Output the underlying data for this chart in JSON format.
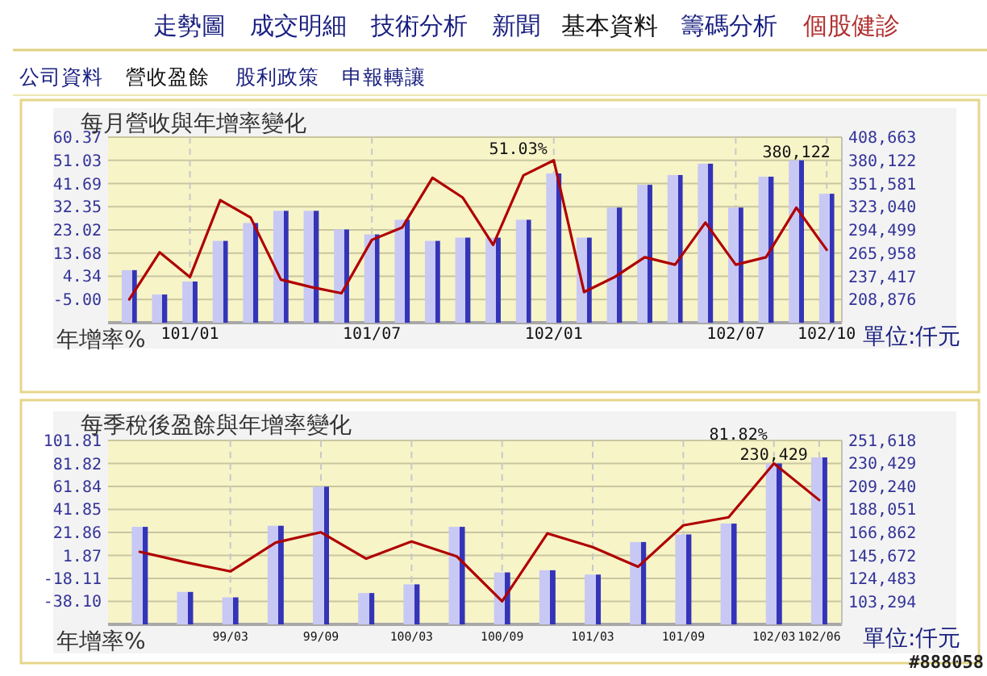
{
  "chart_data": [
    {
      "type": "other",
      "annotations": [
        "走勢圖",
        "成交明細",
        "技術分析",
        "新聞",
        "基本資料",
        "籌碼分析",
        "個股健診",
        "公司資料",
        "營收盈餘",
        "股利政策",
        "申報轉讓"
      ]
    },
    {
      "type": "bar",
      "title": "每月營收與年增率變化",
      "ylabel": "年增率%",
      "y2label": "單位:仟元",
      "grid": true,
      "categories": [
        null,
        null,
        "101/01",
        null,
        null,
        null,
        null,
        null,
        "101/07",
        null,
        null,
        null,
        null,
        null,
        "102/01",
        null,
        null,
        null,
        null,
        null,
        "102/07",
        null,
        null,
        "102/10"
      ],
      "ylim": [
        -14.34,
        60.37
      ],
      "yticks": [
        60.37,
        51.03,
        41.69,
        32.35,
        23.02,
        13.68,
        4.34,
        {
          "value": -5,
          "label": "-5.00"
        }
      ],
      "y2lim": [
        180335,
        408663
      ],
      "y2ticks": [
        {
          "value": 408663,
          "label": "408,663"
        },
        {
          "value": 380122,
          "label": "380,122"
        },
        {
          "value": 351581,
          "label": "351,581"
        },
        {
          "value": 323040,
          "label": "323,040"
        },
        {
          "value": 294499,
          "label": "294,499"
        },
        {
          "value": 265958,
          "label": "265,958"
        },
        {
          "value": 237417,
          "label": "237,417"
        },
        {
          "value": 208876,
          "label": "208,876"
        }
      ],
      "series": [
        {
          "type": "bar",
          "axis": "y2",
          "color": "#c8c8f4",
          "values": [
            245000,
            215000,
            231000,
            281000,
            303000,
            318000,
            318000,
            295000,
            289000,
            307000,
            281000,
            285000,
            285000,
            307000,
            364000,
            285000,
            322000,
            350000,
            362000,
            376000,
            322000,
            360000,
            380122,
            339000
          ],
          "value_labels": [
            null,
            null,
            null,
            null,
            null,
            null,
            null,
            null,
            null,
            null,
            null,
            null,
            null,
            null,
            null,
            null,
            null,
            null,
            null,
            null,
            null,
            null,
            "380,122",
            null
          ]
        },
        {
          "type": "line",
          "color": "#b00000",
          "values": [
            -5,
            14,
            4,
            35,
            28,
            3,
            0,
            -2.5,
            19,
            24,
            44,
            36,
            17,
            45,
            51.03,
            -2,
            4,
            12,
            9,
            26,
            9,
            12,
            32,
            15
          ],
          "value_labels": [
            null,
            null,
            null,
            null,
            null,
            null,
            null,
            null,
            null,
            null,
            null,
            null,
            null,
            null,
            "51.03%",
            null,
            null,
            null,
            null,
            null,
            null,
            null,
            null,
            null
          ]
        }
      ]
    },
    {
      "type": "bar",
      "title": "每季稅後盈餘與年增率變化",
      "ylabel": "年增率%",
      "y2label": "單位:仟元",
      "grid": true,
      "annotations": [
        "#888058"
      ],
      "categories": [
        null,
        null,
        "99/03",
        null,
        "99/09",
        null,
        "100/03",
        null,
        "100/09",
        null,
        "101/03",
        null,
        "101/09",
        null,
        "102/03",
        "102/06"
      ],
      "ylim": [
        -58.09,
        101.81
      ],
      "yticks": [
        101.81,
        81.82,
        61.84,
        41.85,
        21.86,
        1.87,
        -18.11,
        {
          "value": -38.1,
          "label": "-38.10"
        }
      ],
      "y2lim": [
        82105,
        251618
      ],
      "y2ticks": [
        {
          "value": 251618,
          "label": "251,618"
        },
        {
          "value": 230429,
          "label": "230,429"
        },
        {
          "value": 209240,
          "label": "209,240"
        },
        {
          "value": 188051,
          "label": "188,051"
        },
        {
          "value": 166862,
          "label": "166,862"
        },
        {
          "value": 145672,
          "label": "145,672"
        },
        {
          "value": 124483,
          "label": "124,483"
        },
        {
          "value": 103294,
          "label": "103,294"
        }
      ],
      "series": [
        {
          "type": "bar",
          "axis": "y2",
          "color": "#c8c8f4",
          "values": [
            172000,
            112000,
            107000,
            173000,
            209000,
            111000,
            119000,
            172000,
            130000,
            132000,
            128000,
            158000,
            165000,
            175000,
            230429,
            236000
          ],
          "value_labels": [
            null,
            null,
            null,
            null,
            null,
            null,
            null,
            null,
            null,
            null,
            null,
            null,
            null,
            null,
            "230,429",
            null
          ]
        },
        {
          "type": "line",
          "color": "#b00000",
          "values": [
            5,
            -4,
            -12,
            13,
            22,
            -1,
            14,
            1,
            -38,
            21,
            9,
            -8,
            28,
            35,
            81.82,
            50
          ],
          "value_labels": [
            null,
            null,
            null,
            null,
            null,
            null,
            null,
            null,
            null,
            null,
            null,
            null,
            null,
            null,
            "81.82%",
            null
          ]
        }
      ]
    }
  ]
}
